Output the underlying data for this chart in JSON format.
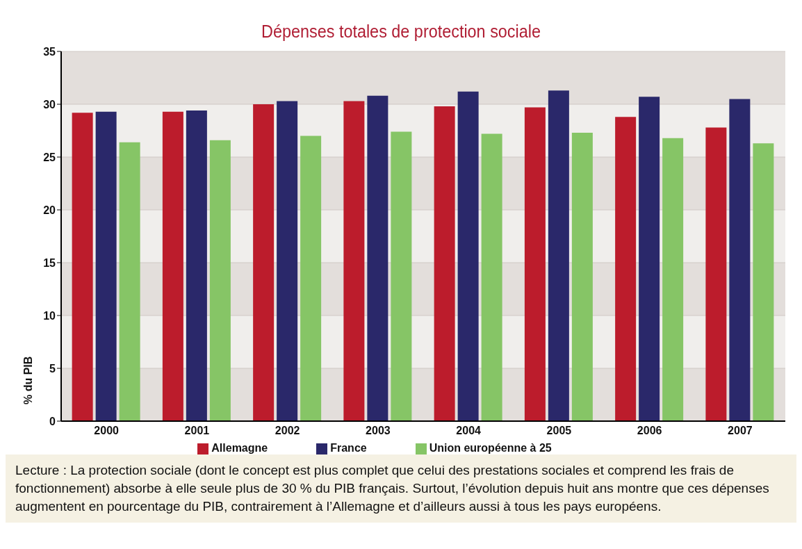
{
  "chart_data": {
    "type": "bar",
    "title": "Dépenses totales de protection sociale",
    "ylabel": "% du PIB",
    "categories": [
      "2000",
      "2001",
      "2002",
      "2003",
      "2004",
      "2005",
      "2006",
      "2007"
    ],
    "series": [
      {
        "name": "Allemagne",
        "color": "#bc1c2c",
        "values": [
          29.2,
          29.3,
          30.0,
          30.3,
          29.8,
          29.7,
          28.8,
          27.8
        ]
      },
      {
        "name": "France",
        "color": "#2a286a",
        "values": [
          29.3,
          29.4,
          30.3,
          30.8,
          31.2,
          31.3,
          30.7,
          30.5
        ]
      },
      {
        "name": "Union européenne à 25",
        "color": "#86c566",
        "values": [
          26.4,
          26.6,
          27.0,
          27.4,
          27.2,
          27.3,
          26.8,
          26.3
        ]
      }
    ],
    "ylim": [
      0,
      35
    ],
    "yticks": [
      0,
      5,
      10,
      15,
      20,
      25,
      30,
      35
    ],
    "grid": "y",
    "legend": "bottom",
    "annotations": [
      "Lecture : La protection sociale (dont le concept est plus complet que celui des prestations sociales et comprend les frais de fonctionnement) absorbe à elle seule plus de 30 % du PIB français. Surtout, l’évolution depuis huit ans montre que ces dépenses augmentent en pourcentage du PIB, contrairement à l’Allemagne et d’ailleurs aussi à tous les pays européens."
    ]
  }
}
